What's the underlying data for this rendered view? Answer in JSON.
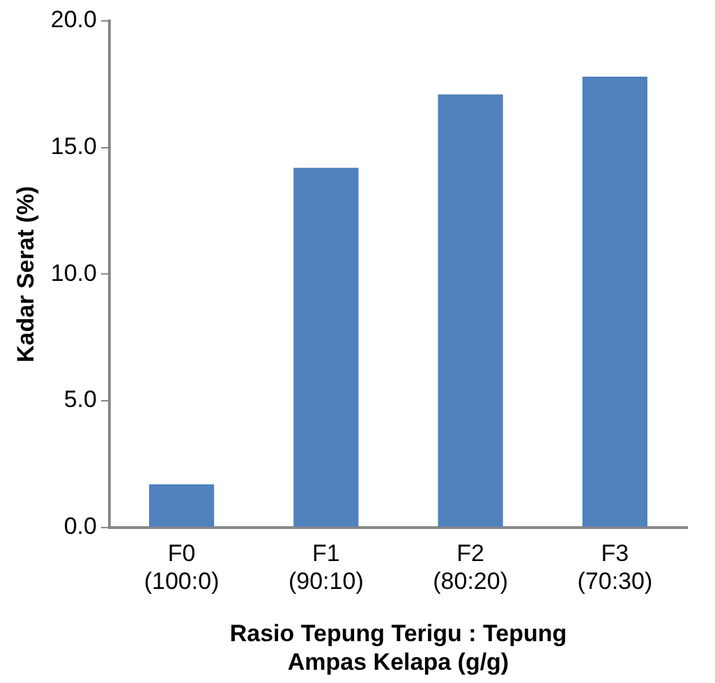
{
  "chart_data": {
    "type": "bar",
    "xlabel": "Rasio Tepung Terigu : Tepung\nAmpas Kelapa (g/g)",
    "ylabel": "Kadar Serat (%)",
    "categories": [
      "F0\n(100:0)",
      "F1\n(90:10)",
      "F2\n(80:20)",
      "F3\n(70:30)"
    ],
    "values": [
      1.7,
      14.2,
      17.1,
      17.8
    ],
    "color": "#4f81bd",
    "ylim": [
      0,
      20
    ],
    "yticks": [
      {
        "value": 0,
        "label": "0.0"
      },
      {
        "value": 5,
        "label": "5.0"
      },
      {
        "value": 10,
        "label": "10.0"
      },
      {
        "value": 15,
        "label": "15.0"
      },
      {
        "value": 20,
        "label": "20.0"
      }
    ],
    "grid": false,
    "legend": false
  }
}
